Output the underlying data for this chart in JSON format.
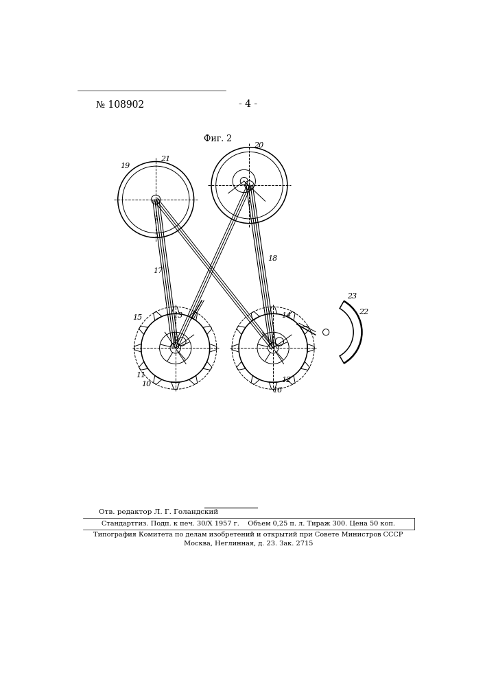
{
  "title": "Фиг. 2",
  "patent_number": "№ 108902",
  "page_number": "- 4 -",
  "footer_line1": "Отв. редактор Л. Г. Голандский",
  "footer_line2": "Стандартгиз. Подп. к печ. 30/X 1957 г.    Объем 0,25 п. л. Тираж 300. Цена 50 коп.",
  "footer_line3": "Типография Комитета по делам изобретений и открытий при Совете Министров СССР",
  "footer_line4": "Москва, Неглинная, д. 23. Зак. 2715",
  "bg_color": "#ffffff",
  "line_color": "#000000"
}
